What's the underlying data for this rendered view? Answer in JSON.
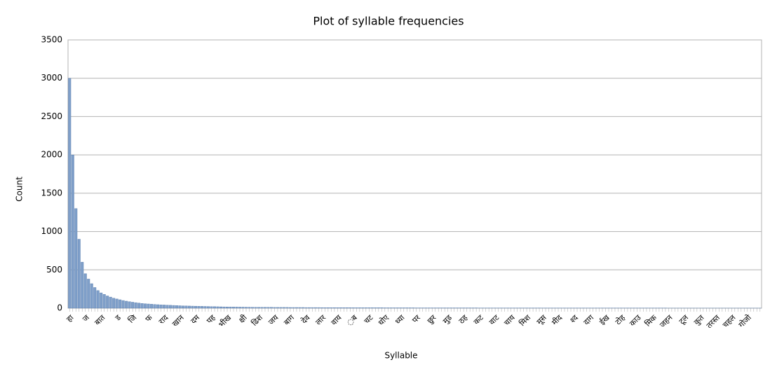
{
  "chart_data": {
    "type": "bar",
    "title": "Plot of syllable frequencies",
    "x_label": "Syllable",
    "y_label": "Count",
    "color": "#7f9fc9",
    "grid": true,
    "ylim": [
      0,
      3500
    ],
    "yticks": [
      0,
      500,
      1000,
      1500,
      2000,
      2500,
      3000,
      3500
    ],
    "categories": [
      "हा",
      null,
      null,
      null,
      null,
      "ज",
      null,
      null,
      null,
      null,
      "बात",
      null,
      null,
      null,
      null,
      "ड",
      null,
      null,
      null,
      null,
      "जि",
      null,
      null,
      null,
      null,
      "फ",
      null,
      null,
      null,
      null,
      "राद",
      null,
      null,
      null,
      null,
      "खान",
      null,
      null,
      null,
      null,
      "दम",
      null,
      null,
      null,
      null,
      "पह",
      null,
      null,
      null,
      null,
      "भीख",
      null,
      null,
      null,
      null,
      "क्षी",
      null,
      null,
      null,
      null,
      "ढिश",
      null,
      null,
      null,
      null,
      "जय",
      null,
      null,
      null,
      null,
      "बाग",
      null,
      null,
      null,
      null,
      "देव",
      null,
      null,
      null,
      null,
      "लार",
      null,
      null,
      null,
      null,
      "वाय",
      null,
      null,
      null,
      null,
      "◌ब",
      null,
      null,
      null,
      null,
      "चट",
      null,
      null,
      null,
      null,
      "धोए",
      null,
      null,
      null,
      null,
      "ध्या",
      null,
      null,
      null,
      null,
      "पर",
      null,
      null,
      null,
      null,
      "छुर",
      null,
      null,
      null,
      null,
      "मुड",
      null,
      null,
      null,
      null,
      "ठह",
      null,
      null,
      null,
      null,
      "कट",
      null,
      null,
      null,
      null,
      "वाट",
      null,
      null,
      null,
      null,
      "चाय",
      null,
      null,
      null,
      null,
      "मिश",
      null,
      null,
      null,
      null,
      "मूस",
      null,
      null,
      null,
      null,
      "मीद",
      null,
      null,
      null,
      null,
      "श्द",
      null,
      null,
      null,
      null,
      "दाग",
      null,
      null,
      null,
      null,
      "ईख",
      null,
      null,
      null,
      null,
      "टोह",
      null,
      null,
      null,
      null,
      "काउ",
      null,
      null,
      null,
      null,
      "मिक",
      null,
      null,
      null,
      null,
      "जहन",
      null,
      null,
      null,
      null,
      "टूल",
      null,
      null,
      null,
      null,
      "कुत",
      null,
      null,
      null,
      null,
      "तरस्त",
      null,
      null,
      null,
      null,
      "चहल",
      null,
      null,
      null,
      null,
      "गोजो",
      null,
      null,
      null,
      null
    ],
    "values": [
      3000,
      2000,
      1300,
      900,
      600,
      450,
      380,
      320,
      270,
      230,
      200,
      180,
      160,
      145,
      130,
      120,
      110,
      100,
      92,
      85,
      78,
      72,
      67,
      62,
      58,
      55,
      52,
      49,
      46,
      44,
      42,
      40,
      38,
      36,
      34,
      32,
      30,
      29,
      28,
      27,
      26,
      25,
      24,
      23,
      22,
      21,
      20,
      19,
      18,
      17,
      16,
      16,
      15,
      15,
      14,
      14,
      13,
      13,
      12,
      12,
      11,
      11,
      11,
      11,
      11,
      10,
      10,
      10,
      10,
      10,
      9,
      9,
      9,
      9,
      9,
      8,
      8,
      8,
      8,
      8,
      7,
      7,
      7,
      7,
      7,
      7,
      7,
      7,
      7,
      7,
      6,
      6,
      6,
      6,
      6,
      6,
      6,
      6,
      6,
      6,
      5,
      5,
      5,
      5,
      5,
      5,
      5,
      5,
      5,
      5,
      4,
      4,
      4,
      4,
      4,
      4,
      4,
      4,
      4,
      4,
      4,
      4,
      4,
      4,
      4,
      4,
      4,
      4,
      4,
      4,
      3,
      3,
      3,
      3,
      3,
      3,
      3,
      3,
      3,
      3,
      3,
      3,
      3,
      3,
      3,
      3,
      3,
      3,
      3,
      3,
      2,
      2,
      2,
      2,
      2,
      2,
      2,
      2,
      2,
      2,
      2,
      2,
      2,
      2,
      2,
      2,
      2,
      2,
      2,
      2,
      2,
      2,
      2,
      2,
      2,
      2,
      2,
      2,
      2,
      2,
      2,
      2,
      2,
      2,
      2,
      2,
      2,
      2,
      2,
      2,
      1,
      1,
      1,
      1,
      1,
      1,
      1,
      1,
      1,
      1,
      1,
      1,
      1,
      1,
      1,
      1,
      1,
      1,
      1,
      1,
      1,
      1,
      1,
      1,
      1,
      1,
      1,
      1,
      1,
      1
    ]
  }
}
